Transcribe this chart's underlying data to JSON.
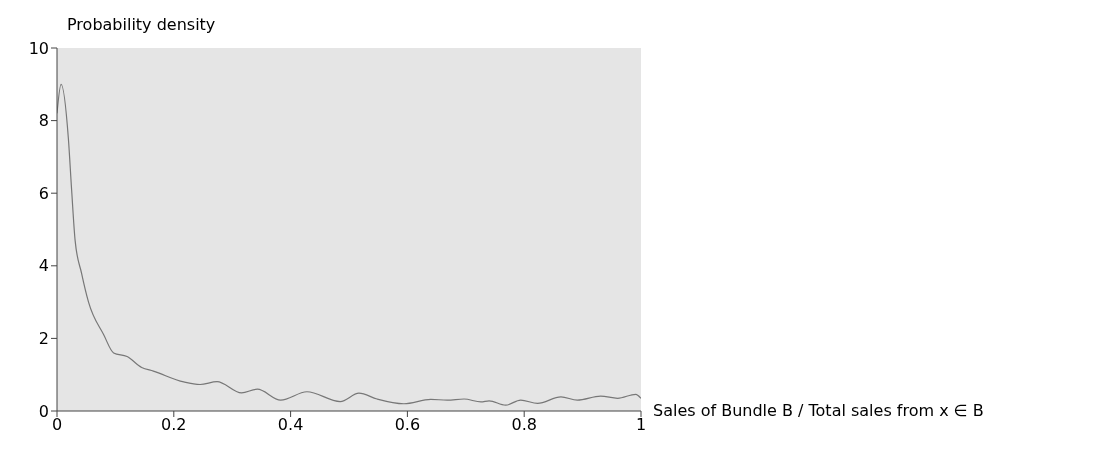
{
  "chart_data": {
    "type": "line",
    "ylabel": "Probability density",
    "xlabel": "Sales of Bundle B / Total sales from x ∈ B",
    "x": [
      0,
      0.007,
      0.0195,
      0.025,
      0.031,
      0.042,
      0.054,
      0.08,
      0.097,
      0.12,
      0.145,
      0.165,
      0.217,
      0.245,
      0.274,
      0.316,
      0.343,
      0.383,
      0.428,
      0.485,
      0.517,
      0.548,
      0.594,
      0.64,
      0.668,
      0.697,
      0.726,
      0.74,
      0.768,
      0.794,
      0.823,
      0.863,
      0.891,
      0.931,
      0.96,
      0.991,
      1
    ],
    "series": [
      {
        "color": "#777777",
        "values": [
          8.2,
          9.0,
          7.5,
          6.1,
          4.7,
          3.8,
          3.0,
          2.1,
          1.6,
          1.5,
          1.2,
          1.1,
          0.8,
          0.73,
          0.81,
          0.5,
          0.6,
          0.3,
          0.53,
          0.26,
          0.49,
          0.33,
          0.2,
          0.32,
          0.3,
          0.33,
          0.25,
          0.28,
          0.16,
          0.3,
          0.21,
          0.39,
          0.3,
          0.41,
          0.35,
          0.46,
          0.35
        ]
      }
    ],
    "xlim": [
      0,
      1
    ],
    "xticks": [
      0,
      {
        "value": 0.2,
        "label": "0.2"
      },
      {
        "value": 0.4,
        "label": "0.4"
      },
      {
        "value": 0.6,
        "label": "0.6"
      },
      {
        "value": 0.8,
        "label": "0.8"
      },
      1
    ],
    "ylim": [
      0,
      10
    ],
    "yticks": [
      0,
      2,
      4,
      6,
      8,
      10
    ],
    "grid": false,
    "legend": false,
    "marker": "none",
    "line_style": "solid"
  }
}
